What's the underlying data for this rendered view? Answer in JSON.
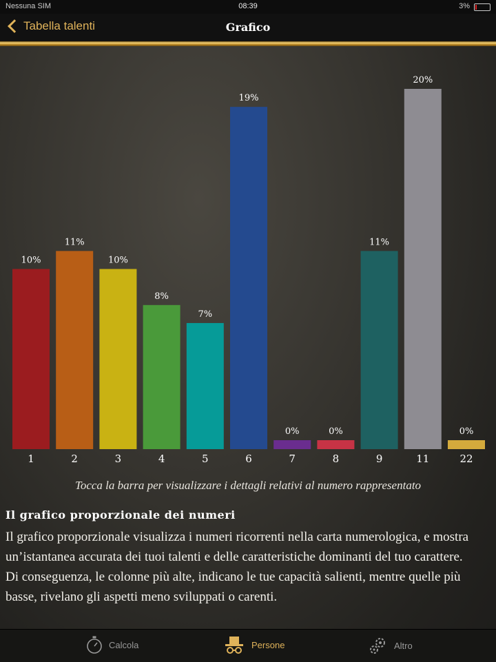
{
  "status_bar": {
    "carrier": "Nessuna SIM",
    "time": "08:39",
    "battery": "3%"
  },
  "nav": {
    "back_label": "Tabella talenti",
    "title": "Grafico"
  },
  "chart_data": {
    "type": "bar",
    "categories": [
      "1",
      "2",
      "3",
      "4",
      "5",
      "6",
      "7",
      "8",
      "9",
      "11",
      "22"
    ],
    "values": [
      10,
      11,
      10,
      8,
      7,
      19,
      0,
      0,
      11,
      20,
      0
    ],
    "data_labels": [
      "10%",
      "11%",
      "10%",
      "8%",
      "7%",
      "19%",
      "0%",
      "0%",
      "11%",
      "20%",
      "0%"
    ],
    "colors": [
      "#9b1c1f",
      "#b85e16",
      "#c9b213",
      "#4a9a3a",
      "#069b98",
      "#244a8f",
      "#6a2d8f",
      "#c73345",
      "#1e6161",
      "#8e8c92",
      "#d4aa3c"
    ],
    "ylim": [
      0,
      20
    ],
    "grid": false
  },
  "hint": "Tocca la barra per visualizzare i dettagli relativi al numero rappresentato",
  "section": {
    "heading": "Il grafico proporzionale dei numeri",
    "paragraph1": "Il grafico proporzionale visualizza i numeri ricorrenti nella carta numerologica, e mostra un’istantanea accurata dei tuoi talenti e delle caratteristiche dominanti del tuo carattere.",
    "paragraph2": "Di conseguenza, le colonne più alte, indicano le tue capacità salienti, mentre quelle più basse, rivelano gli aspetti meno sviluppati o carenti."
  },
  "tabs": [
    {
      "label": "Calcola",
      "icon": "stopwatch-icon"
    },
    {
      "label": "Persone",
      "icon": "top-hat-glasses-icon"
    },
    {
      "label": "Altro",
      "icon": "gears-icon"
    }
  ],
  "colors": {
    "accent": "#e0b35a"
  }
}
